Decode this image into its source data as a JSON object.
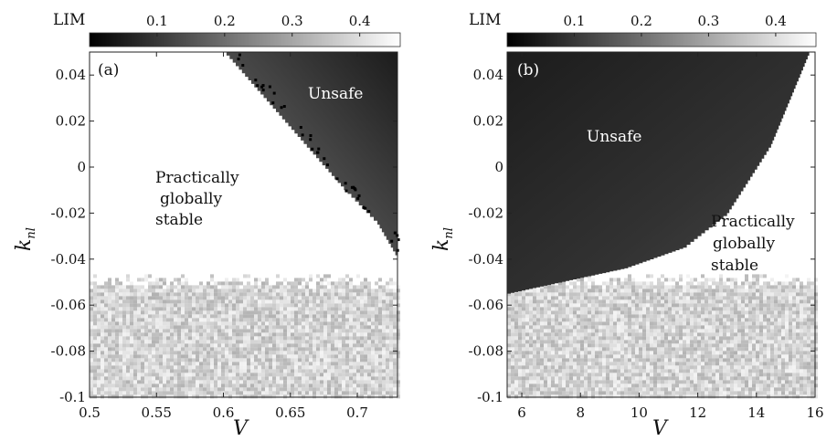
{
  "chart_data": [
    {
      "type": "heatmap",
      "panel_label": "(a)",
      "xlabel": "V",
      "ylabel_main": "k",
      "ylabel_sub": "nl",
      "xlim": [
        0.5,
        0.73
      ],
      "ylim": [
        -0.1,
        0.05
      ],
      "xticks": [
        0.5,
        0.55,
        0.6,
        0.65,
        0.7
      ],
      "xtick_labels": [
        "0.5",
        "0.55",
        "0.6",
        "0.65",
        "0.7"
      ],
      "yticks": [
        0.04,
        0.02,
        0,
        -0.02,
        -0.04,
        -0.06,
        -0.08,
        -0.1
      ],
      "ytick_labels": [
        "0.04",
        "0.02",
        "0",
        "-0.02",
        "-0.04",
        "-0.06",
        "-0.08",
        "-0.1"
      ],
      "colorbar": {
        "title": "LIM",
        "range": [
          0.0,
          0.46
        ],
        "ticks": [
          0.1,
          0.2,
          0.3,
          0.4
        ],
        "tick_labels": [
          "0.1",
          "0.2",
          "0.3",
          "0.4"
        ]
      },
      "background_lim": 0.42,
      "unsafe_region": {
        "description_boundary": [
          [
            0.6,
            0.05
          ],
          [
            0.63,
            0.03
          ],
          [
            0.66,
            0.01
          ],
          [
            0.69,
            -0.01
          ],
          [
            0.715,
            -0.025
          ],
          [
            0.73,
            -0.04
          ]
        ],
        "lim_range": [
          0.05,
          0.25
        ]
      },
      "noisy_region": {
        "k_max": -0.045,
        "lim_range": [
          0.32,
          0.44
        ]
      },
      "annotations": [
        {
          "text": "Unsafe",
          "x": 0.665,
          "y": 0.035,
          "color": "#ffffff"
        },
        {
          "text_lines": [
            "Practically",
            "globally",
            "stable"
          ],
          "x": 0.545,
          "y": 0.0,
          "color": "#111111"
        }
      ]
    },
    {
      "type": "heatmap",
      "panel_label": "(b)",
      "xlabel": "V",
      "ylabel_main": "k",
      "ylabel_sub": "nl",
      "xlim": [
        5.5,
        16
      ],
      "ylim": [
        -0.1,
        0.05
      ],
      "xticks": [
        6,
        8,
        10,
        12,
        14,
        16
      ],
      "xtick_labels": [
        "6",
        "8",
        "10",
        "12",
        "14",
        "16"
      ],
      "yticks": [
        0.04,
        0.02,
        0,
        -0.02,
        -0.04,
        -0.06,
        -0.08,
        -0.1
      ],
      "ytick_labels": [
        "0.04",
        "0.02",
        "0",
        "-0.02",
        "-0.04",
        "-0.06",
        "-0.08",
        "-0.1"
      ],
      "colorbar": {
        "title": "LIM",
        "range": [
          0.0,
          0.46
        ],
        "ticks": [
          0.1,
          0.2,
          0.3,
          0.4
        ],
        "tick_labels": [
          "0.1",
          "0.2",
          "0.3",
          "0.4"
        ]
      },
      "background_lim": 0.42,
      "unsafe_region": {
        "description_boundary": [
          [
            5.5,
            -0.055
          ],
          [
            9.5,
            -0.044
          ],
          [
            11.5,
            -0.035
          ],
          [
            13,
            -0.02
          ],
          [
            14.5,
            0.01
          ],
          [
            15.8,
            0.05
          ]
        ],
        "lim_range": [
          0.05,
          0.13
        ]
      },
      "noisy_region": {
        "k_max": -0.045,
        "lim_range": [
          0.32,
          0.44
        ]
      },
      "annotations": [
        {
          "text": "Unsafe",
          "x": 10.0,
          "y": 0.013,
          "color": "#ffffff"
        },
        {
          "text_lines": [
            "Practically",
            "globally",
            "stable"
          ],
          "x": 14.0,
          "y": -0.035,
          "color": "#111111"
        }
      ]
    }
  ]
}
